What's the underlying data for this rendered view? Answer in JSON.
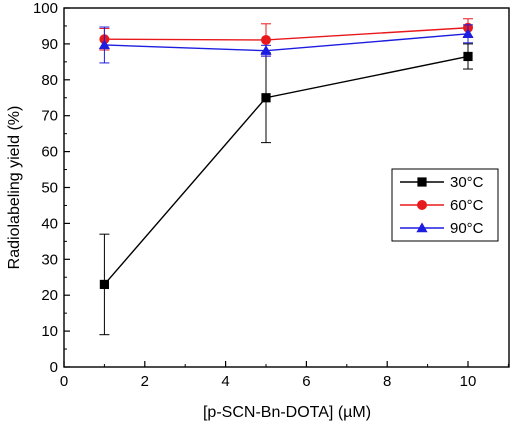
{
  "chart_data": {
    "type": "line",
    "xlabel": "[p-SCN-Bn-DOTA] (µM)",
    "ylabel": "Radiolabeling yield (%)",
    "xlim": [
      0,
      11
    ],
    "ylim": [
      0,
      100
    ],
    "xticks": [
      0,
      2,
      4,
      6,
      8,
      10
    ],
    "yticks": [
      0,
      10,
      20,
      30,
      40,
      50,
      60,
      70,
      80,
      90,
      100
    ],
    "grid": false,
    "legend_position": "right-middle",
    "series": [
      {
        "name": "30°C",
        "color": "#000000",
        "marker": "square",
        "x": [
          1,
          5,
          10
        ],
        "y": [
          23,
          75,
          86.5
        ],
        "err": [
          14,
          12.5,
          3.5
        ]
      },
      {
        "name": "60°C",
        "color": "#e8191c",
        "marker": "circle",
        "x": [
          1,
          5,
          10
        ],
        "y": [
          91.3,
          91.1,
          94.5
        ],
        "err": [
          3,
          4.5,
          2.5
        ]
      },
      {
        "name": "90°C",
        "color": "#1d1de0",
        "marker": "triangle",
        "x": [
          1,
          5,
          10
        ],
        "y": [
          89.7,
          88.1,
          92.8
        ],
        "err": [
          5,
          1.5,
          2.5
        ]
      }
    ]
  }
}
